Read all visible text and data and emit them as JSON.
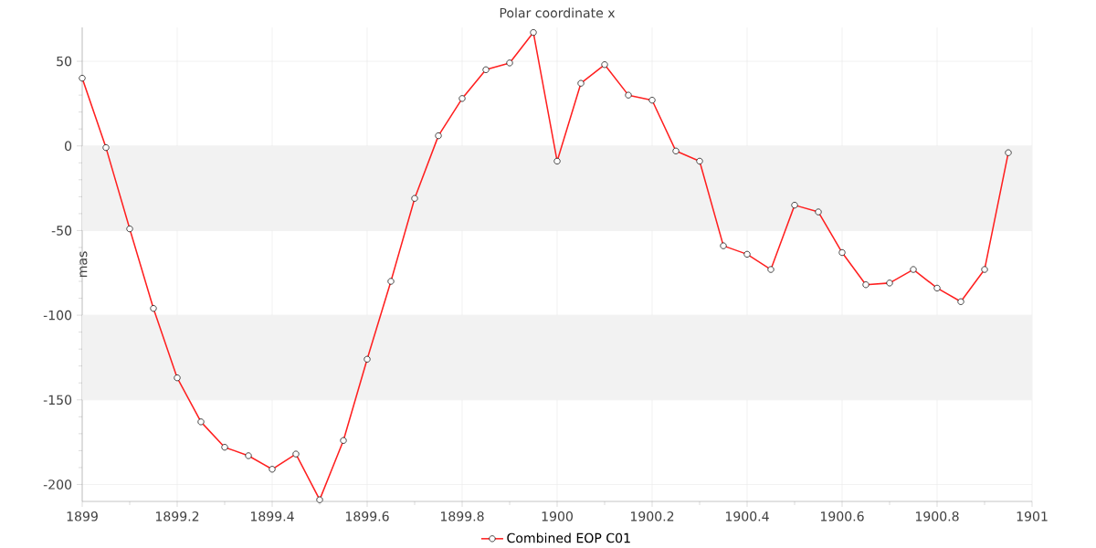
{
  "chart_data": {
    "type": "line",
    "title": "Polar coordinate x",
    "ylabel": "mas",
    "x": [
      1899.0,
      1899.05,
      1899.1,
      1899.15,
      1899.2,
      1899.25,
      1899.3,
      1899.35,
      1899.4,
      1899.45,
      1899.5,
      1899.55,
      1899.6,
      1899.65,
      1899.7,
      1899.75,
      1899.8,
      1899.85,
      1899.9,
      1899.95,
      1900.0,
      1900.05,
      1900.1,
      1900.15,
      1900.2,
      1900.25,
      1900.3,
      1900.35,
      1900.4,
      1900.45,
      1900.5,
      1900.55,
      1900.6,
      1900.65,
      1900.7,
      1900.75,
      1900.8,
      1900.85,
      1900.9,
      1900.95
    ],
    "series": [
      {
        "name": "Combined EOP C01",
        "color": "#ff2020",
        "values": [
          40,
          -1,
          -49,
          -96,
          -137,
          -163,
          -178,
          -183,
          -191,
          -182,
          -209,
          -174,
          -126,
          -80,
          -31,
          6,
          28,
          45,
          49,
          67,
          -9,
          37,
          48,
          30,
          27,
          -3,
          -9,
          -59,
          -64,
          -73,
          -35,
          -39,
          -63,
          -82,
          -81,
          -73,
          -84,
          -92,
          -73,
          -4
        ]
      }
    ],
    "xlim": [
      1899,
      1901
    ],
    "ylim": [
      -210,
      70
    ],
    "xticks": [
      1899,
      1899.2,
      1899.4,
      1899.6,
      1899.8,
      1900,
      1900.2,
      1900.4,
      1900.6,
      1900.8,
      1901
    ],
    "yticks": [
      -200,
      -150,
      -100,
      -50,
      0,
      50
    ],
    "bands": [
      {
        "axis": "y",
        "from": -50,
        "to": 0,
        "color": "#f2f2f2"
      },
      {
        "axis": "y",
        "from": -150,
        "to": -100,
        "color": "#f2f2f2"
      }
    ],
    "grid": true,
    "legend": "bottom",
    "marker": "circle",
    "line_style": "solid"
  }
}
